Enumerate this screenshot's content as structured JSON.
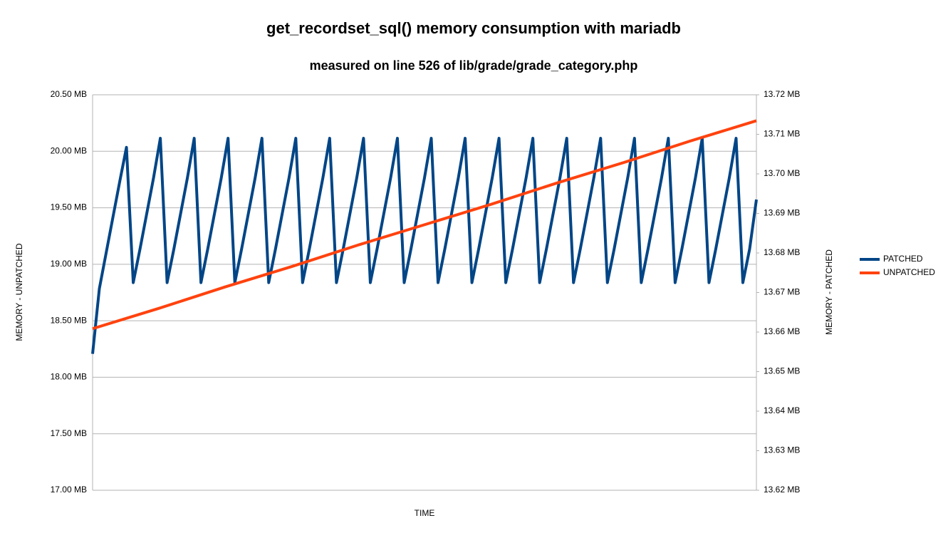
{
  "chart_data": {
    "type": "line",
    "title": "get_recordset_sql() memory consumption with mariadb",
    "subtitle": "measured on line 526 of lib/grade/grade_category.php",
    "xlabel": "TIME",
    "ylabel": "MEMORY - UNPATCHED",
    "y2label": "MEMORY - PATCHED",
    "ylim": [
      17.0,
      20.5
    ],
    "yticks": [
      {
        "value": 17.0,
        "label": "17.00 MB"
      },
      {
        "value": 17.5,
        "label": "17.50 MB"
      },
      {
        "value": 18.0,
        "label": "18.00 MB"
      },
      {
        "value": 18.5,
        "label": "18.50 MB"
      },
      {
        "value": 19.0,
        "label": "19.00 MB"
      },
      {
        "value": 19.5,
        "label": "19.50 MB"
      },
      {
        "value": 20.0,
        "label": "20.00 MB"
      },
      {
        "value": 20.5,
        "label": "20.50 MB"
      }
    ],
    "y2lim": [
      13.62,
      13.72
    ],
    "y2ticks": [
      {
        "value": 13.62,
        "label": "13.62 MB"
      },
      {
        "value": 13.63,
        "label": "13.63 MB"
      },
      {
        "value": 13.64,
        "label": "13.64 MB"
      },
      {
        "value": 13.65,
        "label": "13.65 MB"
      },
      {
        "value": 13.66,
        "label": "13.66 MB"
      },
      {
        "value": 13.67,
        "label": "13.67 MB"
      },
      {
        "value": 13.68,
        "label": "13.68 MB"
      },
      {
        "value": 13.69,
        "label": "13.69 MB"
      },
      {
        "value": 13.7,
        "label": "13.70 MB"
      },
      {
        "value": 13.71,
        "label": "13.71 MB"
      },
      {
        "value": 13.72,
        "label": "13.72 MB"
      }
    ],
    "grid": true,
    "legend": "right",
    "series": [
      {
        "name": "PATCHED",
        "color": "#004586",
        "axis": "y2",
        "values": [
          13.6545,
          13.671,
          13.68,
          13.689,
          13.698,
          13.7067,
          13.6725,
          13.681,
          13.69,
          13.699,
          13.709,
          13.6725,
          13.681,
          13.69,
          13.699,
          13.709,
          13.6725,
          13.681,
          13.69,
          13.699,
          13.709,
          13.6725,
          13.681,
          13.69,
          13.699,
          13.709,
          13.6725,
          13.681,
          13.69,
          13.699,
          13.709,
          13.6725,
          13.681,
          13.69,
          13.699,
          13.709,
          13.6725,
          13.681,
          13.69,
          13.699,
          13.709,
          13.6725,
          13.681,
          13.69,
          13.699,
          13.709,
          13.6725,
          13.681,
          13.69,
          13.699,
          13.709,
          13.6725,
          13.681,
          13.69,
          13.699,
          13.709,
          13.6725,
          13.681,
          13.69,
          13.699,
          13.709,
          13.6725,
          13.681,
          13.69,
          13.699,
          13.709,
          13.6725,
          13.681,
          13.69,
          13.699,
          13.709,
          13.6725,
          13.681,
          13.69,
          13.699,
          13.709,
          13.6725,
          13.681,
          13.69,
          13.699,
          13.709,
          13.6725,
          13.681,
          13.69,
          13.699,
          13.709,
          13.6725,
          13.681,
          13.69,
          13.699,
          13.709,
          13.6725,
          13.681,
          13.69,
          13.699,
          13.709,
          13.6725,
          13.681,
          13.6935
        ]
      },
      {
        "name": "UNPATCHED",
        "color": "#ff420e",
        "values": [
          18.43,
          18.61,
          18.8,
          18.98,
          19.17,
          19.35,
          19.53,
          19.72,
          19.9,
          20.09,
          20.27
        ]
      }
    ]
  }
}
